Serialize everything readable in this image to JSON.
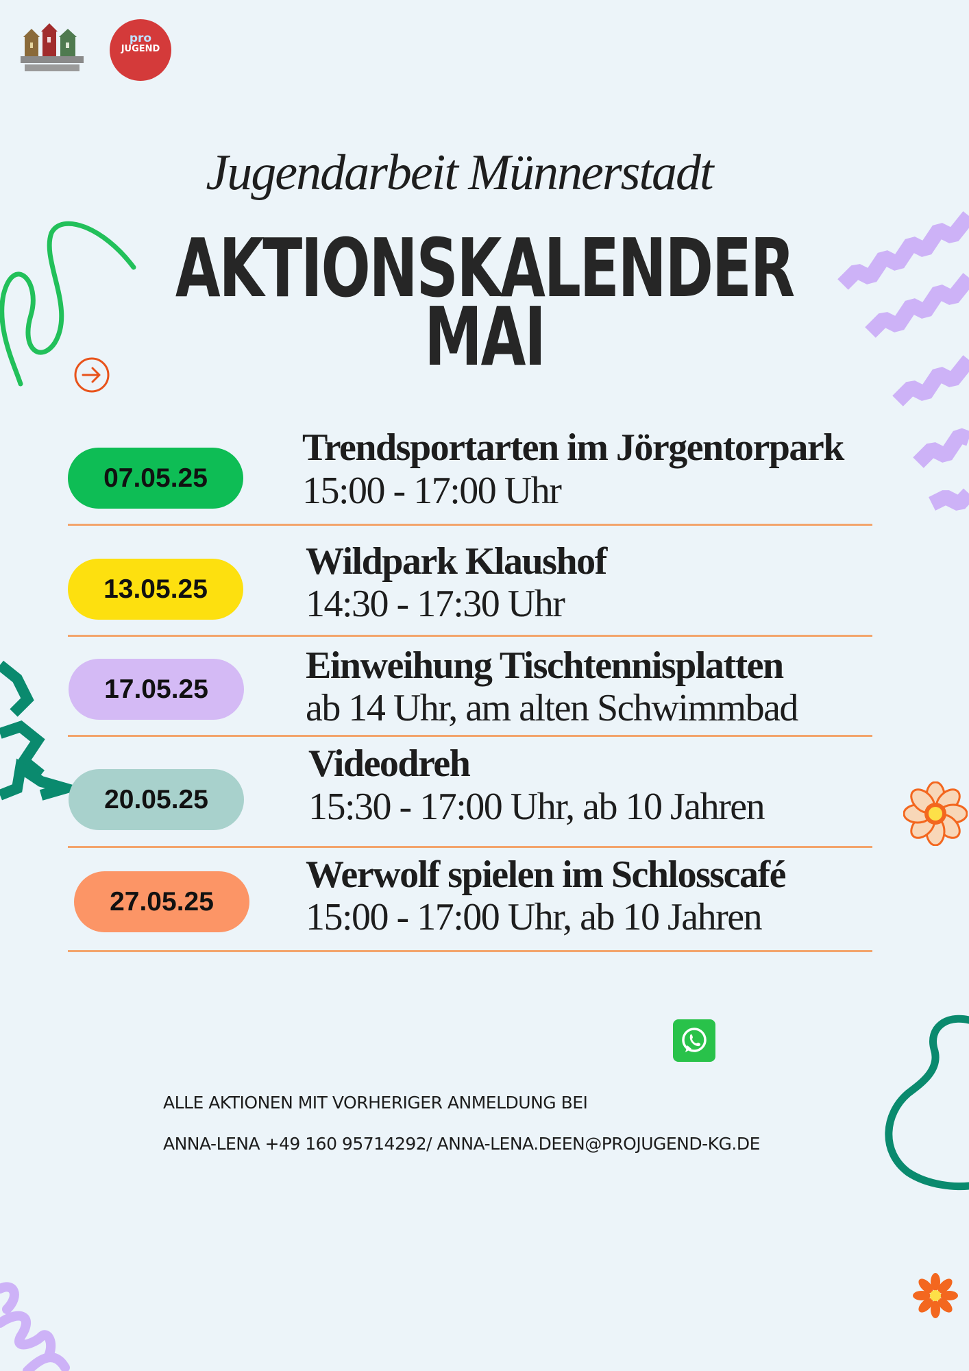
{
  "header": {
    "logo_badge_text_1": "pro",
    "logo_badge_text_2": "JUGEND",
    "logo_badge_color": "#d43a3a",
    "script_title": "Jugendarbeit Münnerstadt",
    "title_line1": "AKTIONSKALENDER",
    "title_line2": "MAI"
  },
  "events": [
    {
      "date": "07.05.25",
      "color": "#0ebd55",
      "title": "Trendsportarten im Jörgentorpark",
      "detail": "15:00 - 17:00 Uhr"
    },
    {
      "date": "13.05.25",
      "color": "#fde00f",
      "title": "Wildpark Klaushof",
      "detail": "14:30 - 17:30 Uhr"
    },
    {
      "date": "17.05.25",
      "color": "#d4baf5",
      "title": "Einweihung Tischtennisplatten",
      "detail": "ab 14 Uhr, am alten Schwimmbad"
    },
    {
      "date": "20.05.25",
      "color": "#a8d1cc",
      "title": "Videodreh",
      "detail": "15:30 - 17:00 Uhr, ab 10 Jahren"
    },
    {
      "date": "27.05.25",
      "color": "#fc9566",
      "title": "Werwolf spielen im Schlosscafé",
      "detail": "15:00 - 17:00 Uhr, ab 10 Jahren"
    }
  ],
  "footer": {
    "line1": "ALLE AKTIONEN MIT VORHERIGER ANMELDUNG BEI",
    "line2": "ANNA-LENA +49 160 95714292/ ANNA-LENA.DEEN@PROJUGEND-KG.DE",
    "icon": "whatsapp-icon"
  },
  "colors": {
    "background": "#ecf4f9",
    "divider": "#f3a46c",
    "accent_green": "#22c05a",
    "accent_purple": "#cdb2f7",
    "accent_teal": "#0a8a6e",
    "accent_orange": "#f3671f"
  }
}
